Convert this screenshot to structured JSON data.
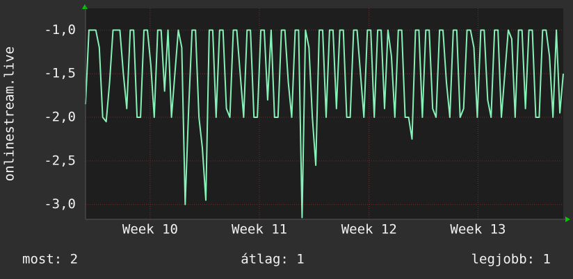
{
  "chart_data": {
    "type": "line",
    "y_label": "onlinestream.live",
    "series": [
      {
        "name": "onlinestream.live",
        "color": "#86f2b8",
        "values": [
          -1.85,
          -1,
          -1,
          -1,
          -1.2,
          -2,
          -2.05,
          -1.6,
          -1,
          -1,
          -1,
          -1.5,
          -1.9,
          -1,
          -1,
          -2,
          -2,
          -1,
          -1,
          -1.4,
          -2,
          -1,
          -1,
          -1.7,
          -1,
          -2,
          -1.5,
          -1,
          -1.2,
          -3.0,
          -1.9,
          -1,
          -1,
          -2,
          -2.35,
          -2.95,
          -1,
          -1,
          -2,
          -1,
          -1,
          -1.9,
          -2,
          -1,
          -1,
          -1.5,
          -2,
          -1,
          -1,
          -2,
          -2,
          -1,
          -1,
          -1.8,
          -1,
          -2,
          -2,
          -1,
          -1,
          -1.6,
          -2,
          -1,
          -1,
          -3.15,
          -1,
          -1.2,
          -2,
          -2.55,
          -1,
          -1,
          -2,
          -1,
          -1,
          -1.9,
          -1,
          -1,
          -2,
          -2,
          -1,
          -1,
          -1.5,
          -2,
          -1,
          -1,
          -2,
          -1,
          -1,
          -1.9,
          -1,
          -1.3,
          -2,
          -1,
          -1,
          -2,
          -2,
          -2.25,
          -1,
          -1,
          -2,
          -1,
          -1,
          -1.9,
          -2,
          -1,
          -1,
          -1.6,
          -2,
          -1,
          -1,
          -2,
          -1.9,
          -1,
          -1,
          -1.2,
          -2,
          -1,
          -1,
          -1.8,
          -2,
          -1,
          -1,
          -2,
          -1.5,
          -1,
          -1.1,
          -2,
          -1,
          -1,
          -1.9,
          -1,
          -1,
          -2,
          -2,
          -1,
          -1,
          -1.3,
          -2,
          -1,
          -1.95,
          -1.5
        ]
      }
    ],
    "xlim": [
      0,
      139
    ],
    "xticks": [
      {
        "value": 18.8,
        "label": "Week 10"
      },
      {
        "value": 50.6,
        "label": "Week 11"
      },
      {
        "value": 82.5,
        "label": "Week 12"
      },
      {
        "value": 114.2,
        "label": "Week 13"
      }
    ],
    "ylim": [
      -3.17,
      -0.75
    ],
    "yticks": [
      {
        "value": -1,
        "label": "-1,0"
      },
      {
        "value": -1.5,
        "label": "-1,5"
      },
      {
        "value": -2,
        "label": "-2,0"
      },
      {
        "value": -2.5,
        "label": "-2,5"
      },
      {
        "value": -3,
        "label": "-3,0"
      }
    ],
    "grid": true,
    "footer": [
      "most: 2",
      "átlag: 1",
      "legjobb: 1"
    ]
  }
}
